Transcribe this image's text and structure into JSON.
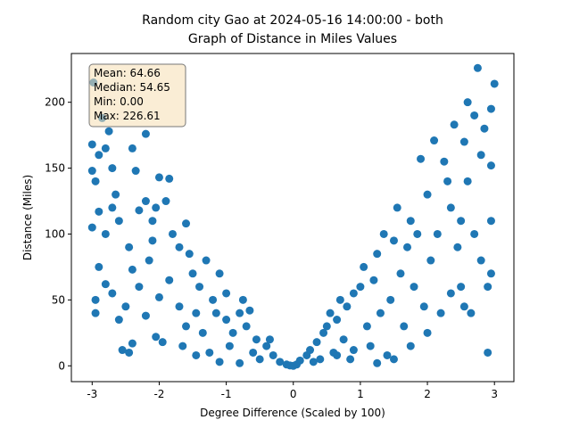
{
  "chart_data": {
    "type": "scatter",
    "title": "Random city Gao at 2024-05-16 14:00:00  - both",
    "subtitle": "Graph of Distance in Miles Values",
    "x_label": "Degree Difference (Scaled by 100)",
    "y_label": "Distance (Miles)",
    "annotations": [
      "Mean: 64.66",
      "Median: 54.65",
      "Min: 0.00",
      "Max: 226.61"
    ],
    "xlim": [
      -3.31,
      3.29
    ],
    "ylim": [
      -12,
      237
    ],
    "xticks": [
      -3,
      -2,
      -1,
      0,
      1,
      2,
      3
    ],
    "yticks": [
      0,
      50,
      100,
      150,
      200
    ],
    "color": "#1f77b4",
    "x": [
      -2.98,
      -2.85,
      -3,
      -3,
      -2.95,
      -2.9,
      -2.8,
      -2.75,
      -2.7,
      -2.65,
      -2.9,
      -3,
      -2.8,
      -2.7,
      -2.6,
      -2.9,
      -2.8,
      -2.95,
      -2.95,
      -2.7,
      -2.6,
      -2.55,
      -2.45,
      -2.4,
      -2.5,
      -2.4,
      -2.45,
      -2.4,
      -2.35,
      -2.2,
      -2.2,
      -2.3,
      -2.1,
      -2.05,
      -2.0,
      -1.85,
      -1.9,
      -2.1,
      -2.15,
      -2.3,
      -2.2,
      -2.05,
      -1.95,
      -2.0,
      -1.85,
      -1.8,
      -1.7,
      -1.6,
      -1.55,
      -1.5,
      -1.7,
      -1.6,
      -1.65,
      -1.45,
      -1.4,
      -1.3,
      -1.35,
      -1.2,
      -1.25,
      -1.1,
      -1.0,
      -1.0,
      -0.95,
      -0.8,
      -1.1,
      -0.9,
      -0.8,
      -0.7,
      -0.6,
      -0.55,
      -0.5,
      -0.4,
      -0.3,
      -0.2,
      -0.1,
      -0.05,
      -0.75,
      -0.65,
      -1.15,
      -1.45,
      -0.35,
      0.0,
      0.05,
      0.1,
      0.2,
      0.25,
      0.3,
      0.35,
      0.4,
      0.45,
      0.5,
      0.55,
      0.6,
      0.65,
      0.7,
      0.75,
      0.8,
      0.85,
      0.9,
      1.0,
      1.05,
      1.1,
      1.15,
      1.2,
      1.25,
      1.3,
      1.35,
      1.4,
      1.45,
      1.5,
      1.55,
      1.6,
      1.65,
      1.7,
      1.75,
      1.8,
      1.85,
      1.9,
      1.95,
      2.0,
      2.05,
      2.1,
      2.15,
      2.2,
      2.25,
      2.3,
      2.35,
      2.4,
      2.45,
      2.5,
      2.5,
      2.55,
      2.6,
      2.6,
      2.65,
      2.7,
      2.75,
      2.8,
      2.8,
      2.85,
      2.9,
      2.95,
      2.95,
      2.95,
      3.0,
      2.9,
      2.95,
      2.7,
      2.55,
      2.35,
      2.0,
      1.75,
      1.5,
      1.25,
      0.9,
      0.65
    ],
    "y": [
      215,
      188,
      168,
      148,
      140,
      160,
      165,
      178,
      150,
      130,
      117,
      105,
      100,
      120,
      110,
      75,
      62,
      50,
      40,
      55,
      35,
      12,
      10,
      17,
      45,
      73,
      90,
      165,
      148,
      176,
      125,
      118,
      110,
      120,
      143,
      142,
      125,
      95,
      80,
      60,
      38,
      22,
      18,
      52,
      65,
      100,
      90,
      108,
      85,
      70,
      45,
      30,
      15,
      40,
      60,
      80,
      25,
      50,
      10,
      70,
      55,
      35,
      15,
      2,
      3,
      25,
      40,
      30,
      10,
      20,
      5,
      15,
      8,
      3,
      1,
      0.3,
      50,
      42,
      40,
      8,
      20,
      0,
      1,
      4,
      8,
      12,
      3,
      18,
      5,
      25,
      30,
      40,
      10,
      35,
      50,
      20,
      45,
      5,
      55,
      60,
      75,
      30,
      15,
      65,
      85,
      40,
      100,
      8,
      50,
      95,
      120,
      70,
      30,
      90,
      110,
      60,
      100,
      157,
      45,
      130,
      80,
      171,
      100,
      40,
      155,
      140,
      120,
      183,
      90,
      110,
      60,
      170,
      200,
      140,
      40,
      100,
      226,
      160,
      80,
      180,
      60,
      195,
      152,
      110,
      214,
      10,
      70,
      190,
      45,
      55,
      25,
      15,
      5,
      2,
      12,
      8
    ]
  }
}
